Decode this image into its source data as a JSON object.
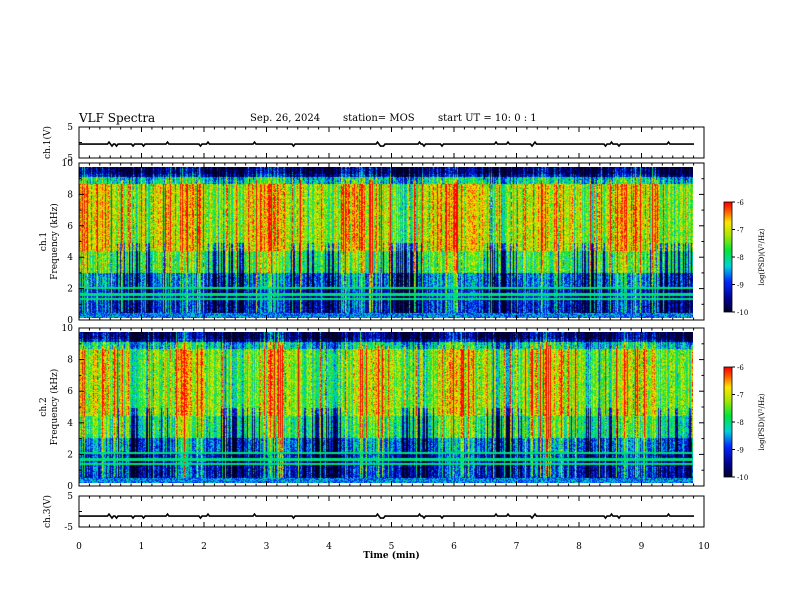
{
  "header": {
    "title": "VLF Spectra",
    "date": "Sep. 26, 2024",
    "station": "station= MOS",
    "start_ut": "start UT =  10: 0  : 1"
  },
  "colors": {
    "spectrogram_low": "#000080",
    "spectrogram_mid": "#00ff00",
    "spectrogram_high": "#ff0000"
  },
  "chart_data": [
    {
      "type": "line",
      "ylabel": "ch.1(V)",
      "ylim": [
        -5,
        5
      ],
      "yticks": [
        "5",
        "-5"
      ],
      "x": [
        0,
        10
      ],
      "series": [
        {
          "values": [
            -0.5,
            -0.5
          ]
        }
      ]
    },
    {
      "type": "heatmap",
      "ylabel": "ch.1\nFrequency (kHz)",
      "ylabel_line1": "ch.1",
      "ylabel_line2": "Frequency (kHz)",
      "ylim": [
        0,
        10
      ],
      "yticks": [
        "0",
        "2",
        "4",
        "6",
        "8",
        "10"
      ],
      "xlim": [
        0,
        9.8
      ],
      "colorbar": {
        "label": "log(PSD)(V²/Hz)",
        "range": [
          -10,
          -6
        ],
        "ticks": [
          "-6",
          "-7",
          "-8",
          "-9",
          "-10"
        ]
      }
    },
    {
      "type": "heatmap",
      "ylabel_line1": "ch.2",
      "ylabel_line2": "Frequency (kHz)",
      "ylim": [
        0,
        10
      ],
      "yticks": [
        "0",
        "2",
        "4",
        "6",
        "8",
        "10"
      ],
      "xlim": [
        0,
        9.8
      ],
      "colorbar": {
        "label": "log(PSD)(V²/Hz)",
        "range": [
          -10,
          -6
        ],
        "ticks": [
          "-6",
          "-7",
          "-8",
          "-9",
          "-10"
        ]
      }
    },
    {
      "type": "line",
      "ylabel": "ch.3(V)",
      "ylim": [
        -5,
        5
      ],
      "yticks": [
        "5",
        "-5"
      ],
      "x": [
        0,
        10
      ],
      "series": [
        {
          "values": [
            -1.5,
            -1.5
          ]
        }
      ]
    }
  ],
  "xaxis": {
    "label": "Time  (min)",
    "xlim": [
      0,
      10
    ],
    "ticks": [
      "0",
      "1",
      "2",
      "3",
      "4",
      "5",
      "6",
      "7",
      "8",
      "9",
      "10"
    ]
  }
}
